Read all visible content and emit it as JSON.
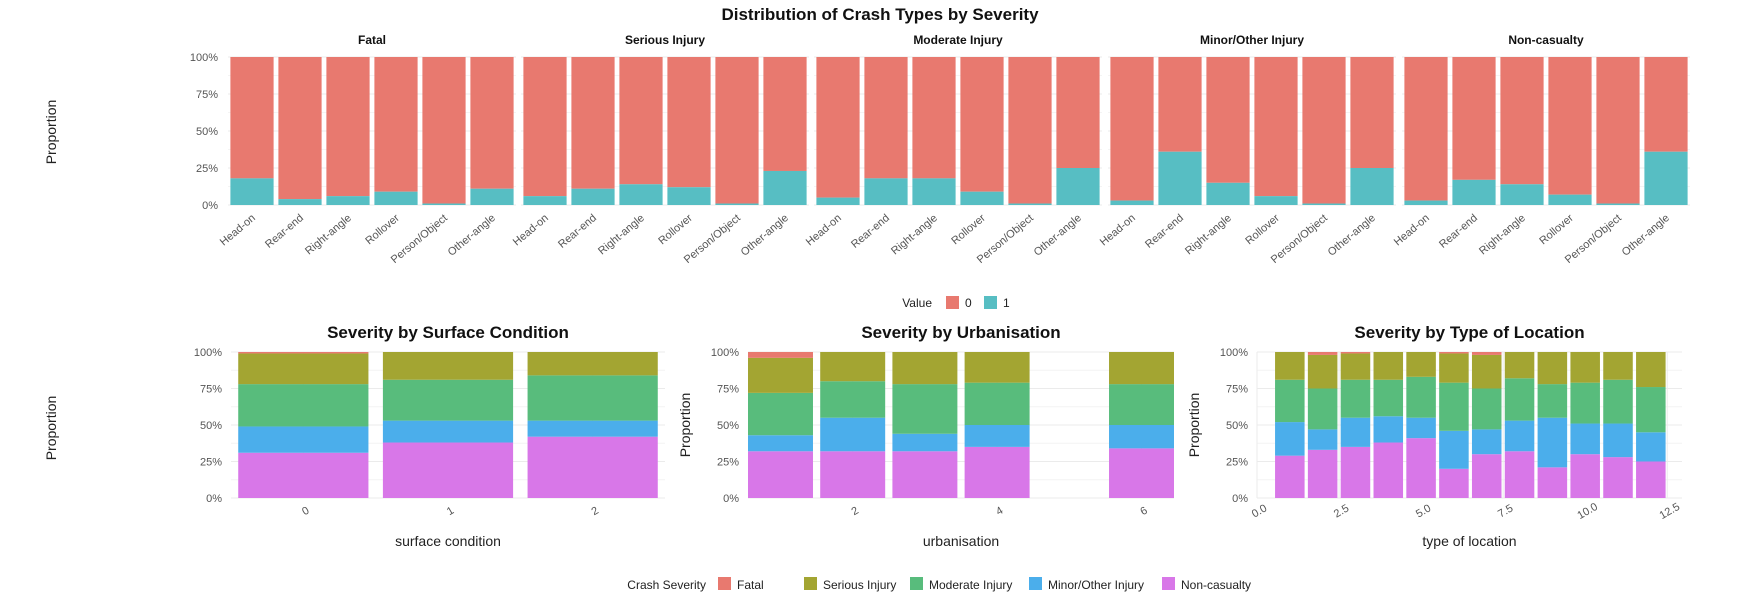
{
  "title": "Distribution of Crash Types by Severity",
  "colors": {
    "fatal": "#E8796F",
    "serious": "#A3A532",
    "moderate": "#58BC7C",
    "minor": "#4BAEEB",
    "noncas": "#D877E8",
    "value0": "#E8796F",
    "value1": "#57BEC3"
  },
  "chart_data": [
    {
      "type": "bar",
      "subtype": "stacked-proportion-faceted",
      "title": "Distribution of Crash Types by Severity",
      "ylabel": "Proportion",
      "yticks": [
        "0%",
        "25%",
        "50%",
        "75%",
        "100%"
      ],
      "categories": [
        "Head-on",
        "Rear-end",
        "Right-angle",
        "Rollover",
        "Person/Object",
        "Other-angle"
      ],
      "legend": {
        "title": "Value",
        "items": [
          "0",
          "1"
        ],
        "position": "bottom"
      },
      "facets": [
        {
          "name": "Fatal",
          "value1": [
            0.18,
            0.04,
            0.06,
            0.09,
            0.01,
            0.11
          ]
        },
        {
          "name": "Serious Injury",
          "value1": [
            0.06,
            0.11,
            0.14,
            0.12,
            0.01,
            0.23
          ]
        },
        {
          "name": "Moderate Injury",
          "value1": [
            0.05,
            0.18,
            0.18,
            0.09,
            0.01,
            0.25
          ]
        },
        {
          "name": "Minor/Other Injury",
          "value1": [
            0.03,
            0.36,
            0.15,
            0.06,
            0.01,
            0.25
          ]
        },
        {
          "name": "Non-casualty",
          "value1": [
            0.03,
            0.17,
            0.14,
            0.07,
            0.01,
            0.36
          ]
        }
      ]
    },
    {
      "type": "bar",
      "subtype": "stacked-proportion",
      "title": "Severity by Surface Condition",
      "xlabel": "surface condition",
      "ylabel": "Proportion",
      "yticks": [
        "0%",
        "25%",
        "50%",
        "75%",
        "100%"
      ],
      "xticks": [
        "0",
        "1",
        "2"
      ],
      "x": [
        0,
        1,
        2
      ],
      "series": [
        {
          "name": "Non-casualty",
          "values": [
            0.31,
            0.38,
            0.42
          ]
        },
        {
          "name": "Minor/Other Injury",
          "values": [
            0.18,
            0.15,
            0.11
          ]
        },
        {
          "name": "Moderate Injury",
          "values": [
            0.29,
            0.28,
            0.31
          ]
        },
        {
          "name": "Serious Injury",
          "values": [
            0.21,
            0.19,
            0.16
          ]
        },
        {
          "name": "Fatal",
          "values": [
            0.01,
            0.0,
            0.0
          ]
        }
      ]
    },
    {
      "type": "bar",
      "subtype": "stacked-proportion",
      "title": "Severity by Urbanisation",
      "xlabel": "urbanisation",
      "ylabel": "Proportion",
      "yticks": [
        "0%",
        "25%",
        "50%",
        "75%",
        "100%"
      ],
      "xticks": [
        "2",
        "4",
        "6"
      ],
      "x": [
        1,
        2,
        3,
        4,
        6
      ],
      "series": [
        {
          "name": "Non-casualty",
          "values": [
            0.32,
            0.32,
            0.32,
            0.35,
            0.34
          ]
        },
        {
          "name": "Minor/Other Injury",
          "values": [
            0.11,
            0.23,
            0.12,
            0.15,
            0.16
          ]
        },
        {
          "name": "Moderate Injury",
          "values": [
            0.29,
            0.25,
            0.34,
            0.29,
            0.28
          ]
        },
        {
          "name": "Serious Injury",
          "values": [
            0.24,
            0.2,
            0.22,
            0.21,
            0.22
          ]
        },
        {
          "name": "Fatal",
          "values": [
            0.04,
            0.0,
            0.0,
            0.0,
            0.0
          ]
        }
      ]
    },
    {
      "type": "bar",
      "subtype": "stacked-proportion",
      "title": "Severity by Type of Location",
      "xlabel": "type of location",
      "ylabel": "Proportion",
      "yticks": [
        "0%",
        "25%",
        "50%",
        "75%",
        "100%"
      ],
      "xticks": [
        "0.0",
        "2.5",
        "5.0",
        "7.5",
        "10.0",
        "12.5"
      ],
      "x": [
        1,
        2,
        3,
        4,
        5,
        6,
        7,
        8,
        9,
        10,
        11,
        12
      ],
      "series": [
        {
          "name": "Non-casualty",
          "values": [
            0.29,
            0.33,
            0.35,
            0.38,
            0.41,
            0.2,
            0.3,
            0.32,
            0.21,
            0.3,
            0.28,
            0.25
          ]
        },
        {
          "name": "Minor/Other Injury",
          "values": [
            0.23,
            0.14,
            0.2,
            0.18,
            0.14,
            0.26,
            0.17,
            0.21,
            0.34,
            0.21,
            0.23,
            0.2
          ]
        },
        {
          "name": "Moderate Injury",
          "values": [
            0.29,
            0.28,
            0.26,
            0.25,
            0.28,
            0.33,
            0.28,
            0.29,
            0.23,
            0.28,
            0.3,
            0.31
          ]
        },
        {
          "name": "Serious Injury",
          "values": [
            0.19,
            0.23,
            0.18,
            0.19,
            0.17,
            0.2,
            0.23,
            0.18,
            0.22,
            0.21,
            0.19,
            0.24
          ]
        },
        {
          "name": "Fatal",
          "values": [
            0.0,
            0.02,
            0.01,
            0.0,
            0.0,
            0.01,
            0.02,
            0.0,
            0.0,
            0.0,
            0.0,
            0.0
          ]
        }
      ],
      "xlim": [
        0,
        12.5
      ]
    }
  ],
  "severity_legend": {
    "title": "Crash Severity",
    "items": [
      "Fatal",
      "Serious Injury",
      "Moderate Injury",
      "Minor/Other Injury",
      "Non-casualty"
    ]
  },
  "value_legend": {
    "title": "Value",
    "items": [
      "0",
      "1"
    ]
  }
}
